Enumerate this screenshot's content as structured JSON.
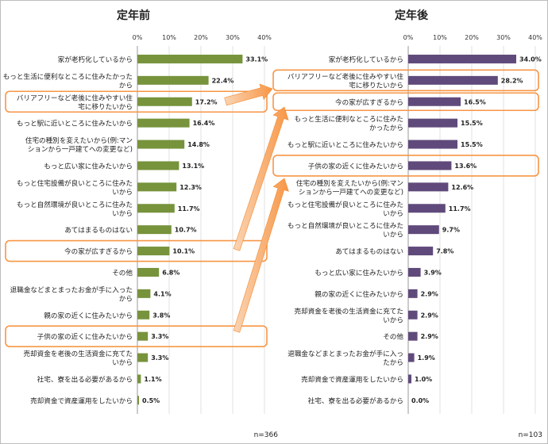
{
  "chart_data": [
    {
      "type": "bar",
      "orientation": "horizontal",
      "title": "定年前",
      "n_label": "n=366",
      "xlim": [
        0,
        40
      ],
      "x_ticks": [
        "0%",
        "10%",
        "20%",
        "30%",
        "40%"
      ],
      "bar_color": "#77933c",
      "categories": [
        [
          "家が老朽化しているから"
        ],
        [
          "もっと生活に便利なところに住みたかった",
          "から"
        ],
        [
          "バリアフリーなど老後に住みやすい住",
          "宅に移りたいから"
        ],
        [
          "もっと駅に近いところに住みたいから"
        ],
        [
          "住宅の種別を変えたいから(例:マン",
          "ションから一戸建てへの変更など)"
        ],
        [
          "もっと広い家に住みたいから"
        ],
        [
          "もっと住宅設備が良いところに住みた",
          "いから"
        ],
        [
          "もっと自然環境が良いところに住みた",
          "いから"
        ],
        [
          "あてはまるものはない"
        ],
        [
          "今の家が広すぎるから"
        ],
        [
          "その他"
        ],
        [
          "退職金などまとまったお金が手に入った",
          "から"
        ],
        [
          "親の家の近くに住みたいから"
        ],
        [
          "子供の家の近くに住みたいから"
        ],
        [
          "売却資金を老後の生活資金に充てた",
          "いから"
        ],
        [
          "社宅、寮を出る必要があるから"
        ],
        [
          "売却資金で資産運用をしたいから"
        ]
      ],
      "values": [
        33.1,
        22.4,
        17.2,
        16.4,
        14.8,
        13.1,
        12.3,
        11.7,
        10.7,
        10.1,
        6.8,
        4.1,
        3.8,
        3.3,
        3.3,
        1.1,
        0.5
      ],
      "value_labels": [
        "33.1%",
        "22.4%",
        "17.2%",
        "16.4%",
        "14.8%",
        "13.1%",
        "12.3%",
        "11.7%",
        "10.7%",
        "10.1%",
        "6.8%",
        "4.1%",
        "3.8%",
        "3.3%",
        "3.3%",
        "1.1%",
        "0.5%"
      ]
    },
    {
      "type": "bar",
      "orientation": "horizontal",
      "title": "定年後",
      "n_label": "n=103",
      "xlim": [
        0,
        40
      ],
      "x_ticks": [
        "0%",
        "10%",
        "20%",
        "30%",
        "40%"
      ],
      "bar_color": "#604a7b",
      "categories": [
        [
          "家が老朽化しているから"
        ],
        [
          "バリアフリーなど老後に住みやすい住",
          "宅に移りたいから"
        ],
        [
          "今の家が広すぎるから"
        ],
        [
          "もっと生活に便利なところに住みた",
          "かったから"
        ],
        [
          "もっと駅に近いところに住みたいから"
        ],
        [
          "子供の家の近くに住みたいから"
        ],
        [
          "住宅の種別を変えたいから(例:マン",
          "ションから一戸建てへの変更など)"
        ],
        [
          "もっと住宅設備が良いところに住みた",
          "いから"
        ],
        [
          "もっと自然環境が良いところに住みた",
          "いから"
        ],
        [
          "あてはまるものはない"
        ],
        [
          "もっと広い家に住みたいから"
        ],
        [
          "親の家の近くに住みたいから"
        ],
        [
          "売却資金を老後の生活資金に充てた",
          "いから"
        ],
        [
          "その他"
        ],
        [
          "退職金などまとまったお金が手に入っ",
          "たから"
        ],
        [
          "売却資金で資産運用をしたいから"
        ],
        [
          "社宅、寮を出る必要があるから"
        ]
      ],
      "values": [
        34.0,
        28.2,
        16.5,
        15.5,
        15.5,
        13.6,
        12.6,
        11.7,
        9.7,
        7.8,
        3.9,
        2.9,
        2.9,
        2.9,
        1.9,
        1.0,
        0.0
      ],
      "value_labels": [
        "34.0%",
        "28.2%",
        "16.5%",
        "15.5%",
        "15.5%",
        "13.6%",
        "12.6%",
        "11.7%",
        "9.7%",
        "7.8%",
        "3.9%",
        "2.9%",
        "2.9%",
        "2.9%",
        "1.9%",
        "1.0%",
        "0.0%"
      ]
    }
  ],
  "highlight_color": "#f79646"
}
